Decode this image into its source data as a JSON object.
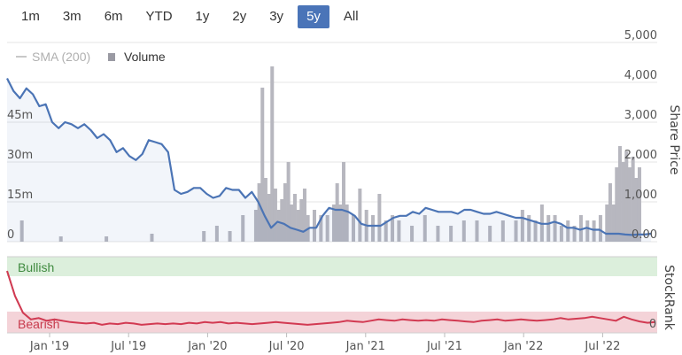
{
  "range_selector": {
    "buttons": [
      "1m",
      "3m",
      "6m",
      "YTD",
      "1y",
      "2y",
      "3y",
      "5y",
      "All"
    ],
    "active": "5y"
  },
  "legend": {
    "sma_label": "SMA (200)",
    "volume_label": "Volume"
  },
  "colors": {
    "price_line": "#4b74b5",
    "volume_bar": "#b7b7bf",
    "stockrank_line": "#d23a52",
    "bullish_band": "#dcefdc",
    "bearish_band": "#f4d3d8",
    "bullish_text": "#3f8a3f",
    "bearish_text": "#c73a4c"
  },
  "chart_data": [
    {
      "type": "line",
      "name": "price-panel",
      "x_ticks": [
        "Jan '19",
        "Jul '19",
        "Jan '20",
        "Jul '20",
        "Jan '21",
        "Jul '21",
        "Jan '22",
        "Jul '22"
      ],
      "y_right_label": "Share Price",
      "y_right_ticks": [
        "5,000",
        "4,000",
        "3,000",
        "2,000",
        "1,000",
        "0.00"
      ],
      "y_right_range": [
        0,
        5000
      ],
      "y_left_ticks": [
        "45m",
        "30m",
        "15m",
        "0"
      ],
      "volume_range_m": [
        0,
        75
      ],
      "price_series": {
        "x_date_ranges": [
          "2018-09-01",
          "2022-10-20"
        ],
        "values": [
          4100,
          3780,
          3600,
          3850,
          3700,
          3400,
          3450,
          3000,
          2850,
          3000,
          2950,
          2850,
          2950,
          2800,
          2600,
          2700,
          2550,
          2250,
          2350,
          2150,
          2050,
          2200,
          2550,
          2500,
          2450,
          2250,
          1300,
          1200,
          1250,
          1350,
          1350,
          1200,
          1100,
          1150,
          1350,
          1300,
          1300,
          1100,
          1250,
          1000,
          650,
          350,
          500,
          450,
          350,
          300,
          250,
          350,
          350,
          650,
          850,
          800,
          800,
          750,
          650,
          450,
          400,
          400,
          400,
          500,
          600,
          650,
          650,
          750,
          700,
          850,
          800,
          750,
          750,
          750,
          700,
          800,
          800,
          750,
          700,
          700,
          750,
          700,
          650,
          600,
          600,
          550,
          500,
          450,
          450,
          500,
          450,
          350,
          350,
          300,
          350,
          300,
          300,
          200,
          200,
          200,
          180,
          170,
          180,
          180,
          200
        ]
      },
      "volume_series_m": [
        [
          0.02,
          8
        ],
        [
          0.08,
          2
        ],
        [
          0.15,
          2
        ],
        [
          0.22,
          3
        ],
        [
          0.3,
          4
        ],
        [
          0.32,
          6
        ],
        [
          0.34,
          4
        ],
        [
          0.36,
          10
        ],
        [
          0.38,
          12
        ],
        [
          0.385,
          22
        ],
        [
          0.39,
          58
        ],
        [
          0.395,
          24
        ],
        [
          0.4,
          18
        ],
        [
          0.405,
          66
        ],
        [
          0.41,
          20
        ],
        [
          0.415,
          12
        ],
        [
          0.42,
          16
        ],
        [
          0.425,
          22
        ],
        [
          0.43,
          30
        ],
        [
          0.435,
          14
        ],
        [
          0.44,
          18
        ],
        [
          0.445,
          12
        ],
        [
          0.45,
          16
        ],
        [
          0.455,
          20
        ],
        [
          0.46,
          10
        ],
        [
          0.47,
          12
        ],
        [
          0.48,
          10
        ],
        [
          0.49,
          10
        ],
        [
          0.5,
          14
        ],
        [
          0.505,
          22
        ],
        [
          0.51,
          14
        ],
        [
          0.515,
          30
        ],
        [
          0.52,
          14
        ],
        [
          0.53,
          10
        ],
        [
          0.54,
          20
        ],
        [
          0.55,
          12
        ],
        [
          0.56,
          10
        ],
        [
          0.57,
          18
        ],
        [
          0.58,
          8
        ],
        [
          0.59,
          10
        ],
        [
          0.6,
          8
        ],
        [
          0.62,
          6
        ],
        [
          0.64,
          10
        ],
        [
          0.66,
          6
        ],
        [
          0.68,
          6
        ],
        [
          0.7,
          8
        ],
        [
          0.72,
          8
        ],
        [
          0.74,
          6
        ],
        [
          0.76,
          8
        ],
        [
          0.78,
          8
        ],
        [
          0.79,
          12
        ],
        [
          0.8,
          10
        ],
        [
          0.81,
          8
        ],
        [
          0.82,
          14
        ],
        [
          0.83,
          10
        ],
        [
          0.84,
          10
        ],
        [
          0.85,
          6
        ],
        [
          0.86,
          8
        ],
        [
          0.87,
          6
        ],
        [
          0.88,
          10
        ],
        [
          0.89,
          8
        ],
        [
          0.9,
          8
        ],
        [
          0.91,
          10
        ],
        [
          0.92,
          14
        ],
        [
          0.925,
          22
        ],
        [
          0.93,
          14
        ],
        [
          0.935,
          28
        ],
        [
          0.94,
          36
        ],
        [
          0.945,
          30
        ],
        [
          0.95,
          34
        ],
        [
          0.955,
          28
        ],
        [
          0.96,
          32
        ],
        [
          0.965,
          24
        ],
        [
          0.97,
          28
        ]
      ]
    },
    {
      "type": "line",
      "name": "stockrank-panel",
      "y_right_label": "StockRank",
      "y_right_ticks": [
        "0"
      ],
      "y_range": [
        0,
        100
      ],
      "bands": [
        {
          "label": "Bullish",
          "from": 75,
          "to": 100
        },
        {
          "label": "Bearish",
          "from": 0,
          "to": 25
        }
      ],
      "series_values": [
        92,
        55,
        30,
        20,
        22,
        18,
        20,
        18,
        16,
        15,
        14,
        15,
        12,
        14,
        13,
        15,
        14,
        12,
        13,
        14,
        13,
        14,
        13,
        15,
        14,
        16,
        15,
        16,
        14,
        15,
        14,
        13,
        14,
        15,
        16,
        15,
        14,
        13,
        12,
        13,
        14,
        15,
        16,
        18,
        17,
        16,
        18,
        20,
        19,
        18,
        20,
        19,
        18,
        19,
        18,
        20,
        19,
        18,
        17,
        16,
        18,
        19,
        20,
        18,
        19,
        20,
        19,
        18,
        19,
        20,
        22,
        20,
        21,
        22,
        24,
        22,
        20,
        18,
        24,
        20,
        17,
        15,
        16
      ]
    }
  ]
}
